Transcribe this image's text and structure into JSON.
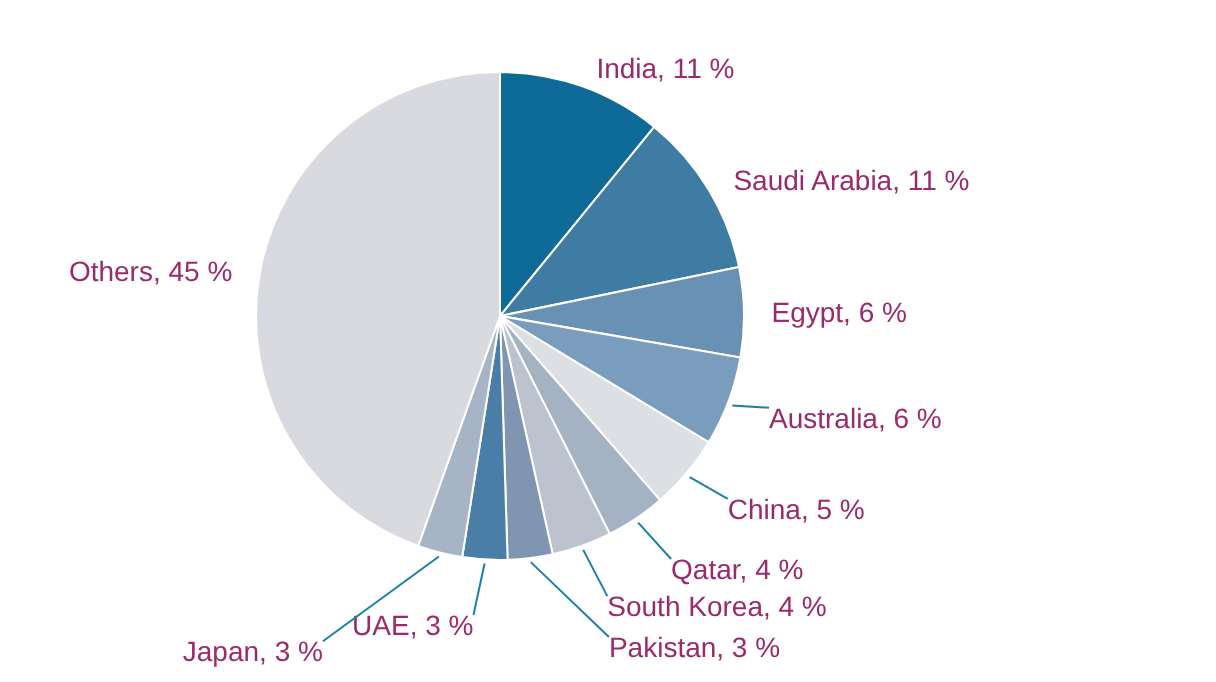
{
  "chart_data": {
    "type": "pie",
    "categories": [
      "India",
      "Saudi Arabia",
      "Egypt",
      "Australia",
      "China",
      "Qatar",
      "South Korea",
      "Pakistan",
      "UAE",
      "Japan",
      "Others"
    ],
    "values": [
      11,
      11,
      6,
      6,
      5,
      4,
      4,
      3,
      3,
      3,
      45
    ],
    "value_labels": [
      "11 %",
      "11 %",
      "6 %",
      "6 %",
      "5 %",
      "4 %",
      "4 %",
      "3 %",
      "3 %",
      "3 %",
      "45 %"
    ],
    "colors": [
      "#0e6a96",
      "#3f7ca3",
      "#6891b4",
      "#7b9dbd",
      "#dcdfe3",
      "#a4b2c4",
      "#bcc3ce",
      "#7f95b2",
      "#4a7ea6",
      "#a6b4c6",
      "#d8dadf"
    ]
  }
}
